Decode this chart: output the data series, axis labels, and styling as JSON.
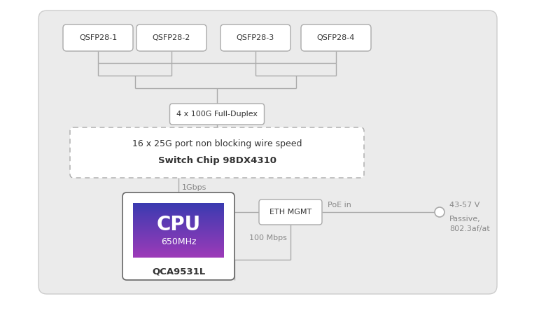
{
  "bg_outer_fill": "#ebebeb",
  "bg_outer_edge": "#cccccc",
  "box_fill": "#ffffff",
  "box_edge": "#aaaaaa",
  "line_color": "#aaaaaa",
  "text_dark": "#333333",
  "text_mid": "#888888",
  "cpu_grad_top": "#3a3ab0",
  "cpu_grad_bottom": "#9b3ab8",
  "qsfp_labels": [
    "QSFP28-1",
    "QSFP28-2",
    "QSFP28-3",
    "QSFP28-4"
  ],
  "hub_label": "4 x 100G Full-Duplex",
  "switch_line1": "16 x 25G port non blocking wire speed",
  "switch_line2": "Switch Chip 98DX4310",
  "cpu_label": "CPU",
  "cpu_freq": "650MHz",
  "cpu_chip": "QCA9531L",
  "eth_label": "ETH MGMT",
  "gbps_label": "1Gbps",
  "mbps_label": "100 Mbps",
  "poe_label": "PoE in",
  "voltage_label": "43-57 V",
  "passive_label": "Passive,\n802.3af/at"
}
